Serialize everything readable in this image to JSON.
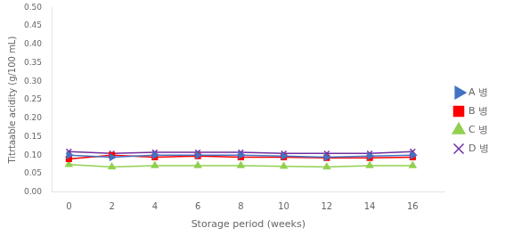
{
  "chart_data": {
    "type": "line",
    "x_label": "Storage period (weeks)",
    "y_label": "Titrtaable acidity (g/100 mL)",
    "x": [
      0,
      2,
      4,
      6,
      8,
      10,
      12,
      14,
      16
    ],
    "series": [
      {
        "name": "A 병",
        "color": "#4472C4",
        "marker": "triangle_right",
        "values": [
          0.1,
          0.095,
          0.1,
          0.1,
          0.1,
          0.098,
          0.095,
          0.098,
          0.1
        ]
      },
      {
        "name": "B 병",
        "color": "#FF0000",
        "marker": "square",
        "values": [
          0.09,
          0.1,
          0.095,
          0.098,
          0.095,
          0.095,
          0.093,
          0.093,
          0.095
        ]
      },
      {
        "name": "C 병",
        "color": "#92D050",
        "marker": "triangle",
        "values": [
          0.075,
          0.068,
          0.072,
          0.072,
          0.072,
          0.07,
          0.068,
          0.072,
          0.072
        ]
      },
      {
        "name": "D 병",
        "color": "#7030A0",
        "marker": "x",
        "values": [
          0.11,
          0.105,
          0.108,
          0.108,
          0.108,
          0.105,
          0.105,
          0.105,
          0.11
        ]
      }
    ],
    "xlim": [
      -0.8,
      17.5
    ],
    "xticks": [
      0,
      2,
      4,
      6,
      8,
      10,
      12,
      14,
      16
    ],
    "ylim": [
      0,
      0.5
    ],
    "yticks": [
      {
        "value": 0,
        "label": "0.00"
      },
      0.05,
      {
        "value": 0.1,
        "label": "0.10"
      },
      0.15,
      {
        "value": 0.2,
        "label": "0.20"
      },
      0.25,
      {
        "value": 0.3,
        "label": "0.30"
      },
      0.35,
      {
        "value": 0.4,
        "label": "0.40"
      },
      0.45,
      {
        "value": 0.5,
        "label": "0.50"
      }
    ],
    "grid": false,
    "legend": "right"
  }
}
